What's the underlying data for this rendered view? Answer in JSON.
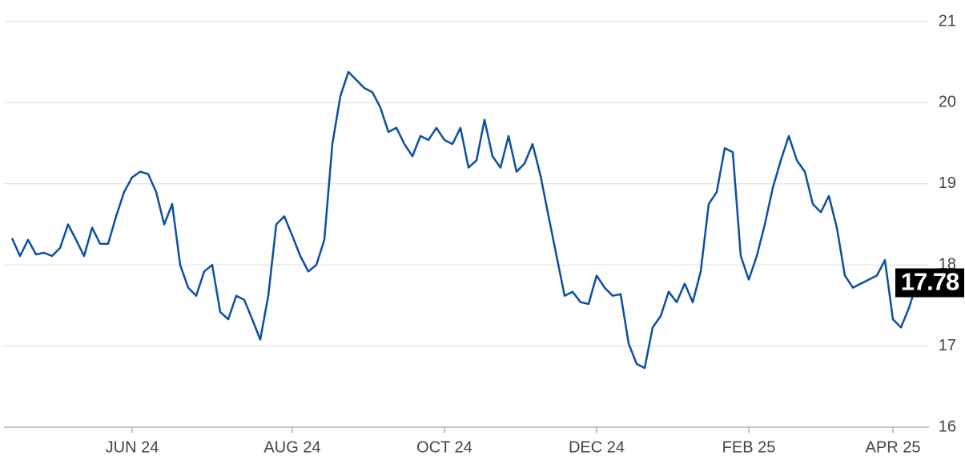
{
  "chart_data": {
    "type": "line",
    "categories": [
      null,
      null,
      null,
      null,
      null,
      null,
      null,
      null,
      null,
      null,
      null,
      null,
      null,
      null,
      null,
      "JUN 24",
      null,
      null,
      null,
      null,
      null,
      null,
      null,
      null,
      null,
      null,
      null,
      null,
      null,
      null,
      null,
      null,
      null,
      null,
      null,
      "AUG 24",
      null,
      null,
      null,
      null,
      null,
      null,
      null,
      null,
      null,
      null,
      null,
      null,
      null,
      null,
      null,
      null,
      null,
      null,
      "OCT 24",
      null,
      null,
      null,
      null,
      null,
      null,
      null,
      null,
      null,
      null,
      null,
      null,
      null,
      null,
      null,
      null,
      null,
      null,
      "DEC 24",
      null,
      null,
      null,
      null,
      null,
      null,
      null,
      null,
      null,
      null,
      null,
      null,
      null,
      null,
      null,
      null,
      null,
      null,
      "FEB 25",
      null,
      null,
      null,
      null,
      null,
      null,
      null,
      null,
      null,
      null,
      null,
      null,
      null,
      null,
      null,
      null,
      null,
      "APR 25",
      null,
      null,
      null
    ],
    "values": [
      18.33,
      18.11,
      18.31,
      18.13,
      18.15,
      18.11,
      18.21,
      18.5,
      18.31,
      18.11,
      18.46,
      18.26,
      18.26,
      18.6,
      18.9,
      19.08,
      19.15,
      19.12,
      18.9,
      18.5,
      18.75,
      18.0,
      17.72,
      17.62,
      17.92,
      18.0,
      17.42,
      17.33,
      17.62,
      17.57,
      17.33,
      17.08,
      17.62,
      18.5,
      18.6,
      18.36,
      18.11,
      17.92,
      18.0,
      18.31,
      19.49,
      20.08,
      20.38,
      20.28,
      20.18,
      20.13,
      19.94,
      19.64,
      19.69,
      19.49,
      19.34,
      19.59,
      19.54,
      19.69,
      19.54,
      19.49,
      19.69,
      19.2,
      19.29,
      19.79,
      19.34,
      19.2,
      19.59,
      19.15,
      19.25,
      19.49,
      19.1,
      18.6,
      18.11,
      17.62,
      17.67,
      17.54,
      17.52,
      17.87,
      17.72,
      17.62,
      17.64,
      17.03,
      16.78,
      16.73,
      17.23,
      17.37,
      17.67,
      17.54,
      17.77,
      17.54,
      17.92,
      18.75,
      18.9,
      19.44,
      19.39,
      18.11,
      17.82,
      18.11,
      18.5,
      18.95,
      19.29,
      19.59,
      19.29,
      19.15,
      18.75,
      18.65,
      18.85,
      18.46,
      17.87,
      17.72,
      17.77,
      17.82,
      17.87,
      18.06,
      17.33,
      17.23,
      17.47,
      17.78
    ],
    "color": "#0b4fa3",
    "ylim": [
      16,
      21
    ],
    "yticks": [
      16,
      17,
      18,
      19,
      20,
      21
    ],
    "grid": true
  }
}
